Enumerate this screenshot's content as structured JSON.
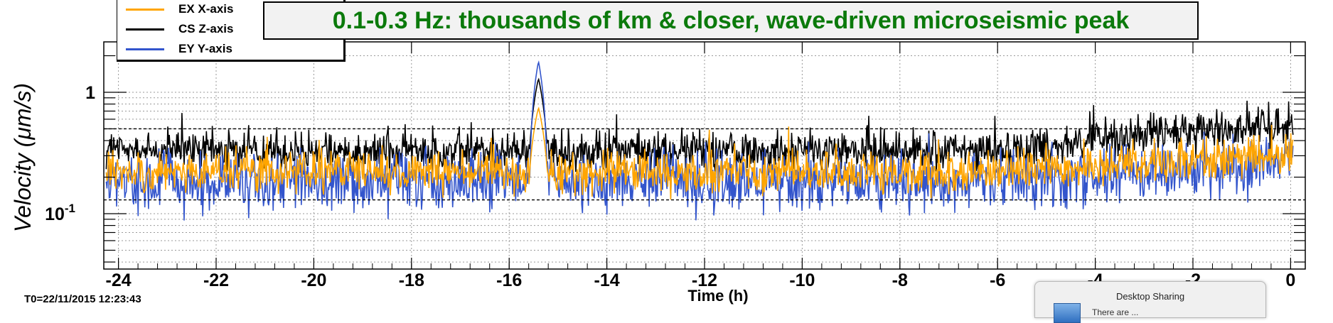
{
  "chart_data": {
    "type": "line",
    "title": "0.1-0.3 Hz: thousands of km & closer, wave-driven microseismic peak",
    "xlabel": "Time (h)",
    "ylabel": "Velocity  (μm/s)",
    "xlim": [
      -24.3,
      0.3
    ],
    "ylim": [
      0.035,
      2.6
    ],
    "y_scale": "log",
    "x_ticks": [
      -24,
      -22,
      -20,
      -18,
      -16,
      -14,
      -12,
      -10,
      -8,
      -6,
      -4,
      -2,
      0
    ],
    "x_tick_labels": [
      "-24",
      "-22",
      "-20",
      "-18",
      "-16",
      "-14",
      "-12",
      "-10",
      "-8",
      "-6",
      "-4",
      "-2",
      "0"
    ],
    "y_tick_labels": [
      {
        "value": 1,
        "label": "1"
      },
      {
        "value": 0.1,
        "label": "10",
        "exponent": "-1"
      }
    ],
    "dashed_reference_lines": [
      0.5,
      0.13
    ],
    "grid": true,
    "legend_position": "top-left",
    "series": [
      {
        "name": "CS Z-axis",
        "color": "#000000",
        "base": 0.33,
        "end": 0.55,
        "spike_x": -15.4,
        "spike_y": 1.3,
        "spread": 0.3
      },
      {
        "name": "EY Y-axis",
        "color": "#3355cc",
        "base": 0.18,
        "end": 0.26,
        "spike_x": -15.4,
        "spike_y": 1.8,
        "spread": 0.42
      },
      {
        "name": "EX X-axis",
        "color": "#ffa500",
        "base": 0.22,
        "end": 0.3,
        "spike_x": -15.4,
        "spike_y": 0.75,
        "spread": 0.3
      }
    ]
  },
  "legend": {
    "items": [
      {
        "label": "EX X-axis",
        "color": "#ffa500"
      },
      {
        "label": "CS Z-axis",
        "color": "#000000"
      },
      {
        "label": "EY Y-axis",
        "color": "#3355cc"
      }
    ]
  },
  "footer": {
    "t0": "T0=22/11/2015 12:23:43"
  },
  "notification": {
    "title": "Desktop Sharing",
    "body": "There are ..."
  }
}
